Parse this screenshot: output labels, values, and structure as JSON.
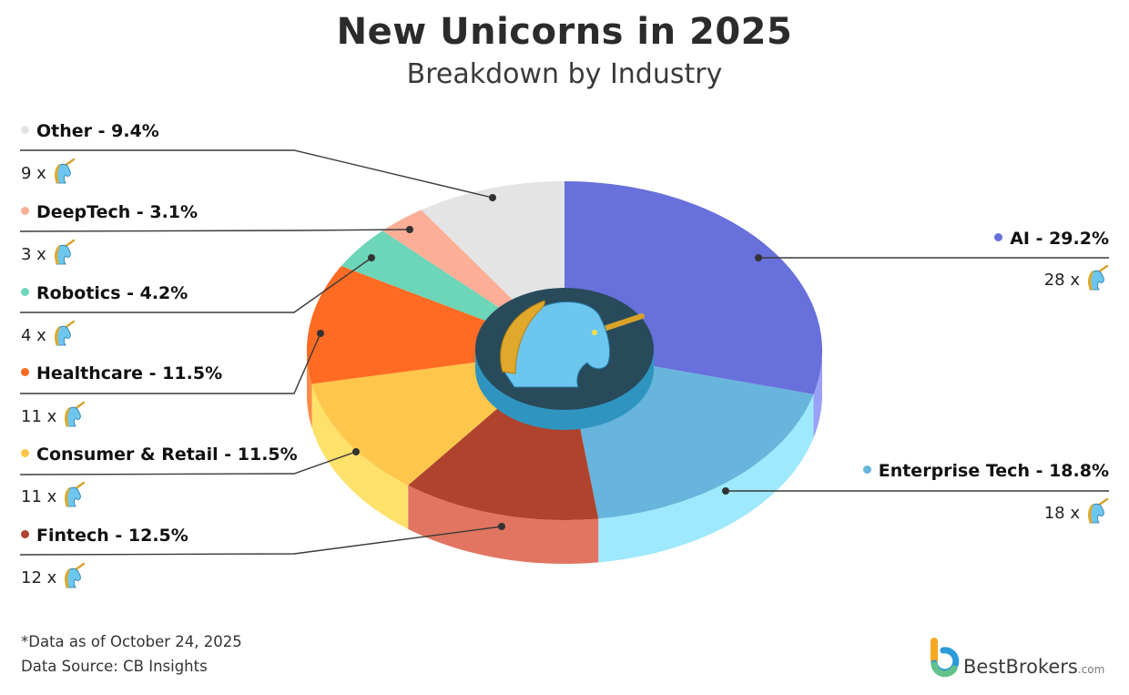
{
  "header": {
    "title": "New Unicorns in 2025",
    "subtitle": "Breakdown by Industry"
  },
  "legend": [
    {
      "label": "Other - 9.4%",
      "count": "9 x",
      "color": "#e4e4e4"
    },
    {
      "label": "DeepTech - 3.1%",
      "count": "3 x",
      "color": "#fcae96"
    },
    {
      "label": "Robotics - 4.2%",
      "count": "4 x",
      "color": "#6dd5b8"
    },
    {
      "label": "Healthcare - 11.5%",
      "count": "11 x",
      "color": "#ff6b22"
    },
    {
      "label": "Consumer & Retail - 11.5%",
      "count": "11 x",
      "color": "#fec74b"
    },
    {
      "label": "Fintech - 12.5%",
      "count": "12 x",
      "color": "#b0432e"
    },
    {
      "label": "AI - 29.2%",
      "count": "28 x",
      "color": "#6870db"
    },
    {
      "label": "Enterprise Tech - 18.8%",
      "count": "18 x",
      "color": "#67b5dc"
    }
  ],
  "footer": {
    "note": "*Data as of October 24, 2025",
    "source": "Data Source: CB Insights",
    "brand": "BestBrokers",
    "brand_tld": ".com"
  },
  "icons": {
    "count_icon": "unicorn-head-icon",
    "center_icon": "unicorn-head-icon",
    "brand_logo": "bestbrokers-logo-icon"
  },
  "chart_data": {
    "type": "pie",
    "title": "New Unicorns in 2025",
    "subtitle": "Breakdown by Industry",
    "style": "3d-donut-with-center-emblem",
    "categories": [
      "AI",
      "Enterprise Tech",
      "Fintech",
      "Consumer & Retail",
      "Healthcare",
      "Robotics",
      "DeepTech",
      "Other"
    ],
    "values": [
      29.2,
      18.8,
      12.5,
      11.5,
      11.5,
      4.2,
      3.1,
      9.4
    ],
    "counts": [
      28,
      18,
      12,
      11,
      11,
      4,
      3,
      9
    ],
    "unit": "%",
    "colors": [
      "#6870db",
      "#67b5dc",
      "#b0432e",
      "#fec74b",
      "#ff6b22",
      "#6dd5b8",
      "#fcae96",
      "#e4e4e4"
    ],
    "side_colors": [
      "#9aa0f5",
      "#9ee9fd",
      "#e27561",
      "#fee16b",
      "#ff8a4a",
      "#8fe6cd",
      "#ffc4b0",
      "#f0f0f0"
    ],
    "start_angle": "12 o'clock, clockwise",
    "annotations": [
      "*Data as of October 24, 2025",
      "Data Source: CB Insights"
    ]
  }
}
